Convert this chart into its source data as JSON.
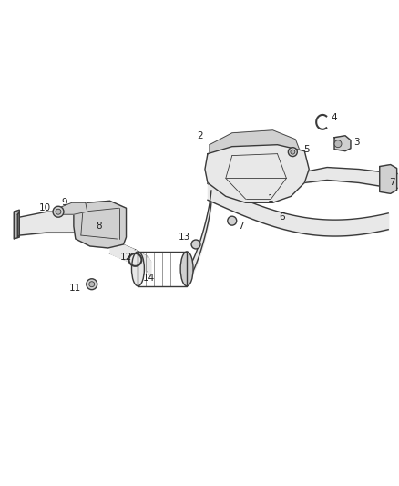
{
  "bg_color": "#ffffff",
  "line_color": "#3a3a3a",
  "fill_light": "#e8e8e8",
  "fill_mid": "#d0d0d0",
  "fill_dark": "#b8b8b8",
  "lw_main": 1.0,
  "lw_thin": 0.6,
  "fig_w": 4.38,
  "fig_h": 5.33,
  "dpi": 100
}
